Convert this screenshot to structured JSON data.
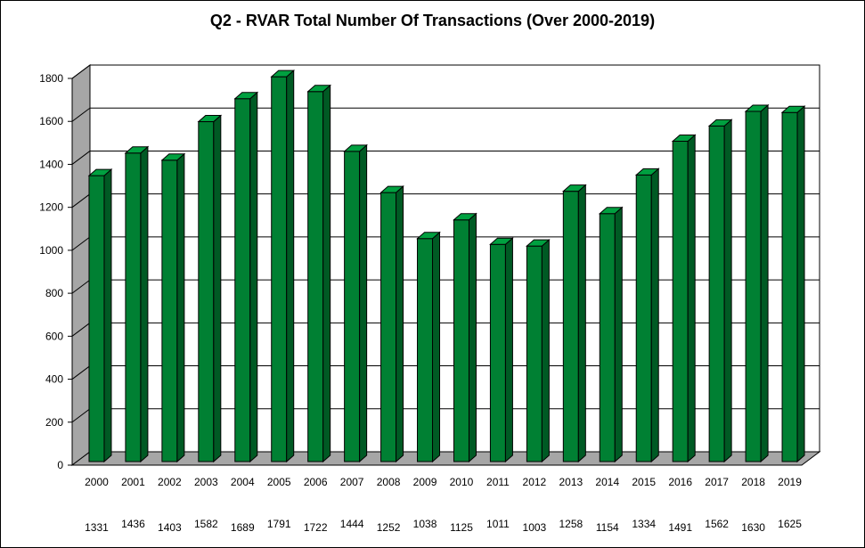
{
  "chart_data": {
    "type": "bar",
    "title": "Q2 - RVAR  Total Number Of Transactions (Over 2000-2019)",
    "xlabel": "",
    "ylabel": "",
    "categories": [
      "2000",
      "2001",
      "2002",
      "2003",
      "2004",
      "2005",
      "2006",
      "2007",
      "2008",
      "2009",
      "2010",
      "2011",
      "2012",
      "2013",
      "2014",
      "2015",
      "2016",
      "2017",
      "2018",
      "2019"
    ],
    "values": [
      1331,
      1436,
      1403,
      1582,
      1689,
      1791,
      1722,
      1444,
      1252,
      1038,
      1125,
      1011,
      1003,
      1258,
      1154,
      1334,
      1491,
      1562,
      1630,
      1625
    ],
    "value_labels": [
      "1331",
      "1436",
      "1403",
      "1582",
      "1689",
      "1791",
      "1722",
      "1444",
      "1252",
      "1038",
      "1125",
      "1011",
      "1003",
      "1258",
      "1154",
      "1334",
      "1491",
      "1562",
      "1630",
      "1625"
    ],
    "ylim": [
      0,
      1800
    ],
    "yticks": [
      0,
      200,
      400,
      600,
      800,
      1000,
      1200,
      1400,
      1600,
      1800
    ],
    "grid": true,
    "legend": "none",
    "style": "3d-column",
    "colors": {
      "bar_front": "#008033",
      "bar_side": "#005a24",
      "bar_top": "#00a040",
      "wall_side": "#a6a6a6",
      "floor": "#a6a6a6",
      "grid": "#000000"
    }
  }
}
